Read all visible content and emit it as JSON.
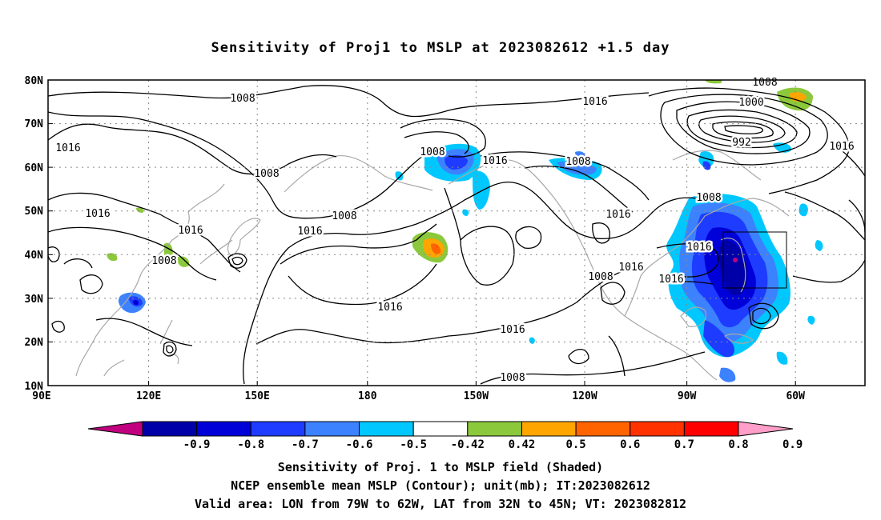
{
  "title": "Sensitivity of Proj1 to MSLP at 2023082612 +1.5 day",
  "lat_labels": [
    "80N",
    "70N",
    "60N",
    "50N",
    "40N",
    "30N",
    "20N",
    "10N"
  ],
  "lon_labels": [
    "90E",
    "120E",
    "150E",
    "180",
    "150W",
    "120W",
    "90W",
    "60W"
  ],
  "colorbar": {
    "labels": [
      "-0.9",
      "-0.8",
      "-0.7",
      "-0.6",
      "-0.5",
      "-0.42",
      "0.42",
      "0.5",
      "0.6",
      "0.7",
      "0.8",
      "0.9"
    ],
    "colors": [
      "#c0007f",
      "#0000a8",
      "#0000d8",
      "#1e3cff",
      "#3c82ff",
      "#00c8ff",
      "#ffffff",
      "#8cc83c",
      "#ffa500",
      "#ff6400",
      "#ff3200",
      "#ff0000",
      "#ff9ec8"
    ]
  },
  "contour_labels": [
    "1008",
    "1016",
    "1016",
    "1008",
    "1008",
    "1016",
    "1008",
    "1016",
    "1016",
    "1016",
    "1008",
    "1016",
    "1016",
    "1008",
    "1016",
    "1016",
    "1008",
    "1000",
    "992",
    "1016",
    "1008",
    "1016",
    "1016",
    "1008",
    "1008"
  ],
  "footer": {
    "line1": "Sensitivity of Proj. 1 to MSLP field (Shaded)",
    "line2": "NCEP ensemble mean MSLP (Contour); unit(mb); IT:2023082612",
    "line3": "Valid area: LON from 79W to 62W, LAT from 32N to 45N; VT: 2023082812"
  }
}
